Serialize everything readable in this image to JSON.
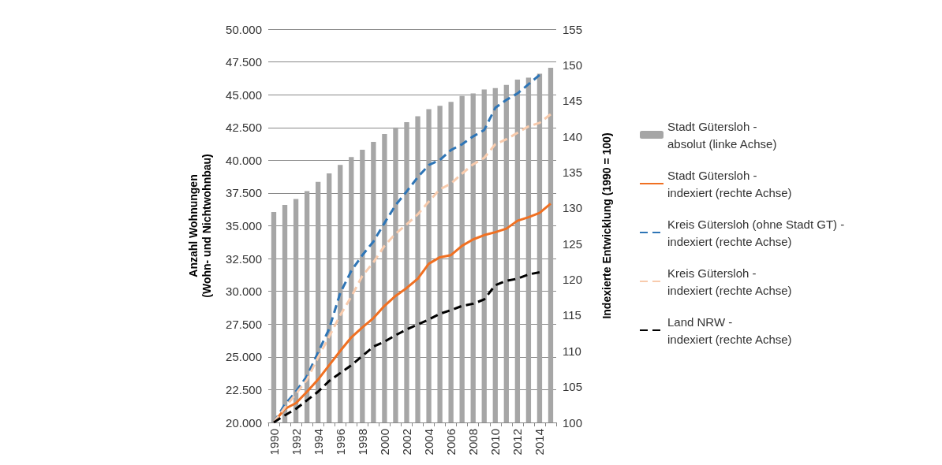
{
  "chart_data": {
    "type": "bar",
    "xlabel": null,
    "ylabel": "Anzahl Wohnungen\n(Wohn- und Nichtwohnbau)",
    "y2label": "Indexierte Entwicklung (1990 = 100)",
    "categories": [
      "1990",
      null,
      "1992",
      null,
      "1994",
      null,
      "1996",
      null,
      "1998",
      null,
      "2000",
      null,
      "2002",
      null,
      "2004",
      null,
      "2006",
      null,
      "2008",
      null,
      "2010",
      null,
      "2012",
      null,
      "2014",
      null
    ],
    "series": [
      {
        "name": "Stadt Gütersloh - absolut (linke Achse)",
        "color": "#a6a6a6",
        "values": [
          36050,
          36600,
          37050,
          37650,
          38350,
          39000,
          39650,
          40250,
          40800,
          41400,
          42000,
          42500,
          42900,
          43350,
          43900,
          44150,
          44450,
          44900,
          45100,
          45400,
          45500,
          45750,
          46150,
          46300,
          46600,
          47050
        ]
      },
      {
        "name": "Stadt Gütersloh - indexiert (rechte Achse)",
        "type": "line",
        "axis": "y2",
        "line_style": "solid",
        "color": "#f07022",
        "values": [
          100,
          101.9,
          102.7,
          104.3,
          106,
          108,
          110,
          111.9,
          113.3,
          114.6,
          116.3,
          117.7,
          118.8,
          120.1,
          122.2,
          123.1,
          123.4,
          124.7,
          125.6,
          126.2,
          126.6,
          127.1,
          128.2,
          128.7,
          129.3,
          130.6
        ]
      },
      {
        "name": "Kreis Gütersloh (ohne Stadt GT) - indexiert (rechte Achse)",
        "type": "line",
        "axis": "y2",
        "line_style": "dashed",
        "color": "#2e75b6",
        "values": [
          100,
          102.5,
          104.3,
          106.5,
          109.8,
          113.1,
          118.1,
          121.2,
          123.4,
          125.3,
          127.9,
          130.4,
          132.3,
          134.3,
          136,
          136.7,
          138.1,
          138.9,
          140,
          140.9,
          144,
          145.1,
          146,
          147.3,
          148.6,
          null
        ]
      },
      {
        "name": "Kreis Gütersloh - indexiert (rechte Achse)",
        "type": "line",
        "axis": "y2",
        "line_style": "dashed",
        "color": "#f8cbad",
        "values": [
          100,
          102.1,
          104,
          106,
          109.1,
          112,
          115,
          117.6,
          120.5,
          122.4,
          124.7,
          126.4,
          127.7,
          129.1,
          130.9,
          132.6,
          133.4,
          134.8,
          136.1,
          137,
          138.9,
          139.6,
          140.5,
          141.4,
          141.9,
          143.1
        ]
      },
      {
        "name": "Land NRW - indexiert (rechte Achse)",
        "type": "line",
        "axis": "y2",
        "line_style": "dashed",
        "color": "#000000",
        "values": [
          100,
          101,
          101.9,
          103.1,
          104.3,
          105.8,
          106.9,
          108,
          109.3,
          110.6,
          111.3,
          112.2,
          113,
          113.7,
          114.4,
          115.2,
          115.7,
          116.3,
          116.6,
          117.2,
          119.2,
          119.8,
          120.1,
          120.7,
          121,
          null
        ]
      }
    ],
    "ylim": [
      20000,
      50000
    ],
    "yticks": [
      {
        "value": 20000,
        "label": "20.000"
      },
      {
        "value": 22500,
        "label": "22.500"
      },
      {
        "value": 25000,
        "label": "25.000"
      },
      {
        "value": 27500,
        "label": "27.500"
      },
      {
        "value": 30000,
        "label": "30.000"
      },
      {
        "value": 32500,
        "label": "32.500"
      },
      {
        "value": 35000,
        "label": "35.000"
      },
      {
        "value": 37500,
        "label": "37.500"
      },
      {
        "value": 40000,
        "label": "40.000"
      },
      {
        "value": 42500,
        "label": "42.500"
      },
      {
        "value": 45000,
        "label": "45.000"
      },
      {
        "value": 47500,
        "label": "47.500"
      },
      {
        "value": 50000,
        "label": "50.000"
      }
    ],
    "y2lim": [
      100,
      155
    ],
    "y2ticks": [
      100,
      105,
      110,
      115,
      120,
      125,
      130,
      135,
      140,
      145,
      150,
      155
    ],
    "grid": "y",
    "legend": "right",
    "marker": "none"
  }
}
